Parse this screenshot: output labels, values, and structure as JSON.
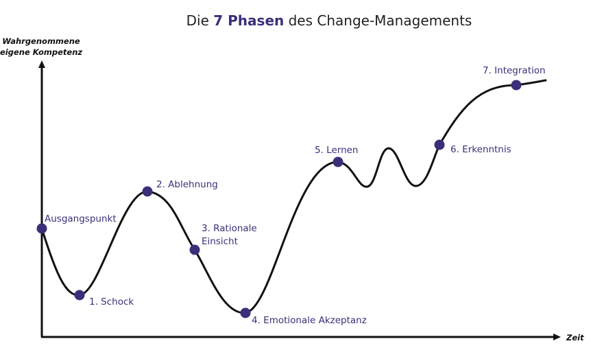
{
  "title": {
    "prefix": "Die ",
    "highlight": "7 Phasen",
    "suffix": " des Change-Managements"
  },
  "axes": {
    "y_label_line1": "Wahrgenommene",
    "y_label_line2": "eigene Kompetenz",
    "x_label": "Zeit"
  },
  "colors": {
    "accent": "#3b2f7a",
    "curve": "#111111",
    "text": "#222222"
  },
  "phases": [
    {
      "label": "Ausgangspunkt"
    },
    {
      "label": "1. Schock"
    },
    {
      "label": "2. Ablehnung"
    },
    {
      "label_line1": "3. Rationale",
      "label_line2": "Einsicht"
    },
    {
      "label": "4. Emotionale Akzeptanz"
    },
    {
      "label": "5. Lernen"
    },
    {
      "label": "6. Erkenntnis"
    },
    {
      "label": "7. Integration"
    }
  ]
}
